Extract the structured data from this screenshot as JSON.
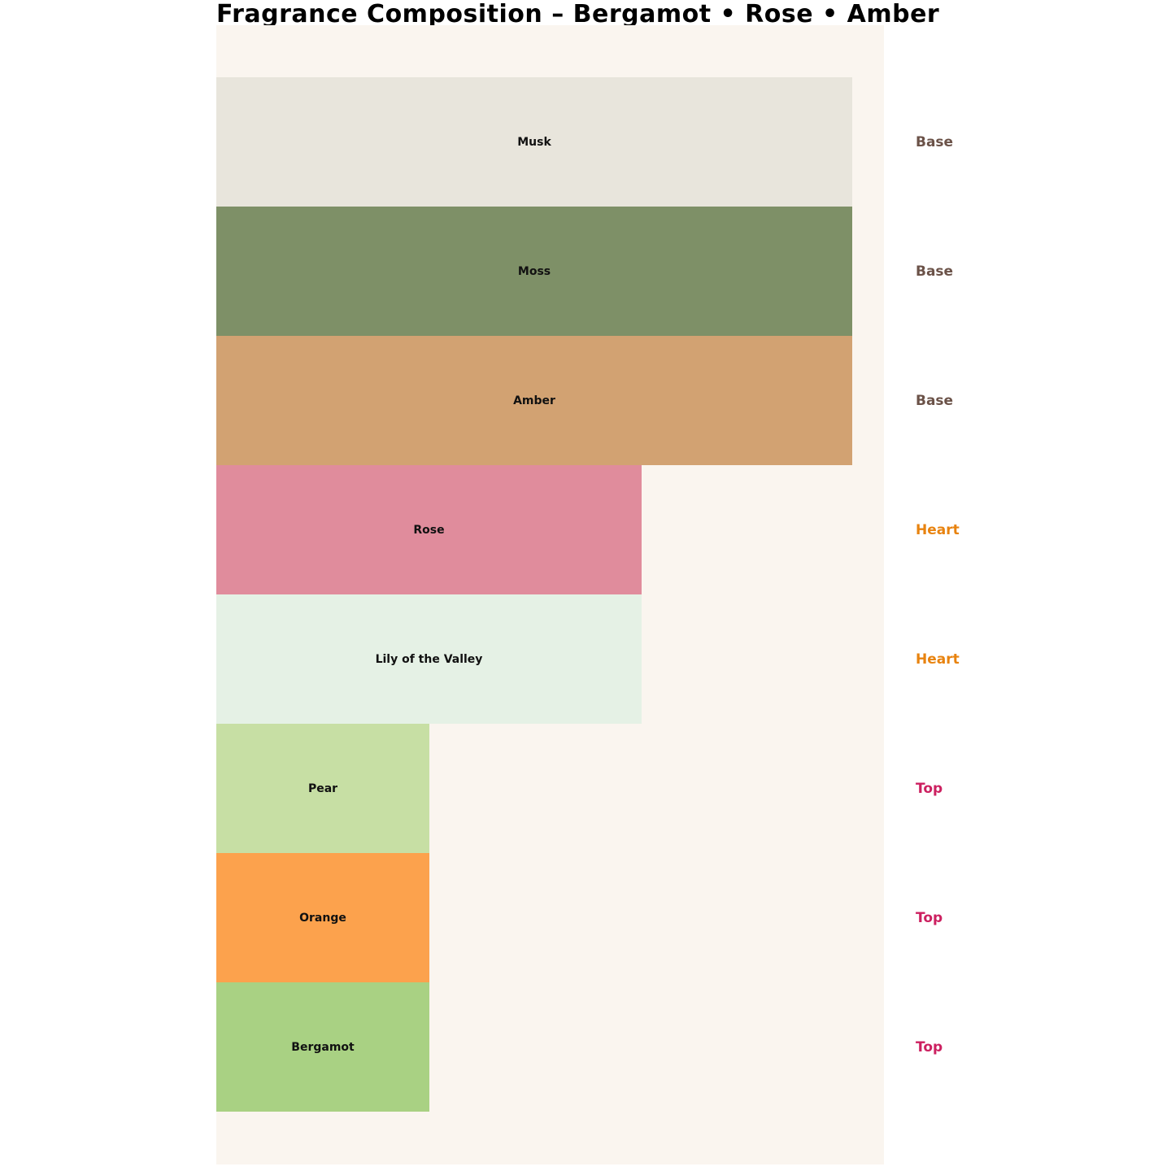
{
  "title": "Fragrance Composition – Bergamot • Rose • Amber",
  "colors": {
    "page_background": "#ffffff",
    "panel_background": "#faf5ef",
    "title_text": "#000000",
    "bar_label_text": "#111111"
  },
  "chart_data": {
    "type": "bar",
    "orientation": "horizontal",
    "title": "Fragrance Composition – Bergamot • Rose • Amber",
    "xlabel": "",
    "ylabel": "",
    "grid": false,
    "axes_visible": false,
    "legend_position": "right-stage-labels",
    "value_scale_note": "relative note strength, Base:Heart:Top = 3:2:1",
    "notes": [
      {
        "label": "Musk",
        "stage": "Base",
        "value": 3,
        "width_pct": 100.0,
        "color": "#e8e5dc"
      },
      {
        "label": "Moss",
        "stage": "Base",
        "value": 3,
        "width_pct": 100.0,
        "color": "#7e9067"
      },
      {
        "label": "Amber",
        "stage": "Base",
        "value": 3,
        "width_pct": 100.0,
        "color": "#d2a272"
      },
      {
        "label": "Rose",
        "stage": "Heart",
        "value": 2,
        "width_pct": 66.9,
        "color": "#e08c9c"
      },
      {
        "label": "Lily of the Valley",
        "stage": "Heart",
        "value": 2,
        "width_pct": 66.9,
        "color": "#e5f1e5"
      },
      {
        "label": "Pear",
        "stage": "Top",
        "value": 1,
        "width_pct": 33.5,
        "color": "#c7dfa4"
      },
      {
        "label": "Orange",
        "stage": "Top",
        "value": 1,
        "width_pct": 33.5,
        "color": "#fca24d"
      },
      {
        "label": "Bergamot",
        "stage": "Top",
        "value": 1,
        "width_pct": 33.5,
        "color": "#a9d183"
      }
    ],
    "stage_colors": {
      "Base": "#6b5248",
      "Heart": "#e8830f",
      "Top": "#cc2060"
    }
  }
}
